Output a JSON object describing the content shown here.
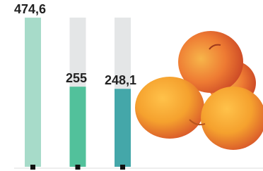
{
  "chart_data": {
    "type": "bar",
    "values": [
      474.6,
      255,
      248.1
    ],
    "value_labels": [
      "474,6",
      "255",
      "248,1"
    ],
    "colors": [
      "#a7dbc9",
      "#52c19b",
      "#44a7a9"
    ],
    "background_color": "#e4e6e7",
    "ylim": [
      0,
      475
    ]
  }
}
